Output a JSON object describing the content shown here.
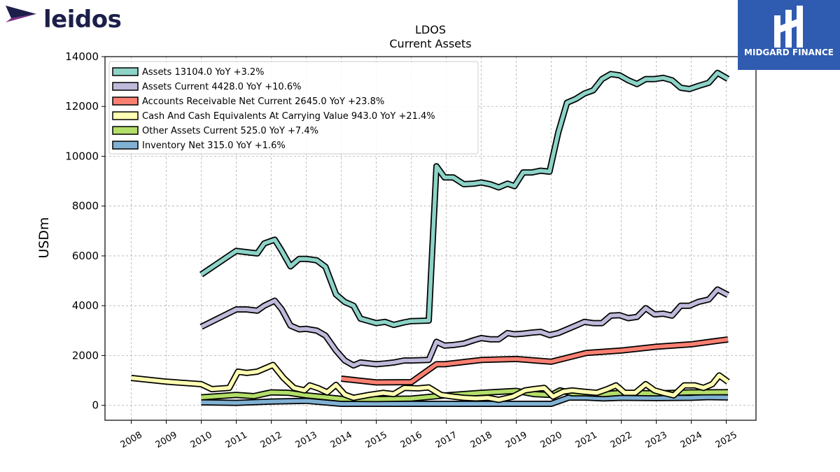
{
  "header": {
    "logo_text": "leidos",
    "badge_text": "MIDGARD FINANCE"
  },
  "colors": {
    "assets": "#8dd3c7",
    "assets_current": "#bebada",
    "accounts_receivable": "#fb8072",
    "cash": "#ffffb3",
    "other_assets": "#b3de69",
    "inventory": "#80b1d3",
    "logo_navy": "#1c1f4a",
    "logo_purple": "#7a2c87",
    "badge_blue": "#2f5bb0"
  },
  "chart_data": {
    "type": "line",
    "title": "LDOS",
    "subtitle": "Current  Assets",
    "xlabel": "",
    "ylabel": "USDm",
    "ylim": [
      -600,
      14000
    ],
    "xlim": [
      2007.25,
      2025.85
    ],
    "yticks": [
      0,
      2000,
      4000,
      6000,
      8000,
      10000,
      12000,
      14000
    ],
    "xticks": [
      "2008",
      "2009",
      "2010",
      "2011",
      "2012",
      "2013",
      "2014",
      "2015",
      "2016",
      "2017",
      "2018",
      "2019",
      "2020",
      "2021",
      "2022",
      "2023",
      "2024",
      "2025"
    ],
    "grid": true,
    "legend_position": "top-left",
    "series": [
      {
        "name": "Assets  13104.0 YoY +3.2%",
        "color_key": "assets",
        "points": [
          [
            2010.0,
            5250
          ],
          [
            2011.0,
            6200
          ],
          [
            2011.3,
            6150
          ],
          [
            2011.6,
            6100
          ],
          [
            2011.8,
            6500
          ],
          [
            2012.1,
            6650
          ],
          [
            2012.3,
            6200
          ],
          [
            2012.55,
            5580
          ],
          [
            2012.8,
            5880
          ],
          [
            2013.0,
            5880
          ],
          [
            2013.3,
            5820
          ],
          [
            2013.55,
            5560
          ],
          [
            2013.85,
            4450
          ],
          [
            2014.1,
            4150
          ],
          [
            2014.35,
            4000
          ],
          [
            2014.55,
            3480
          ],
          [
            2015.0,
            3300
          ],
          [
            2015.25,
            3350
          ],
          [
            2015.5,
            3230
          ],
          [
            2015.8,
            3330
          ],
          [
            2016.0,
            3380
          ],
          [
            2016.5,
            3400
          ],
          [
            2016.72,
            9600
          ],
          [
            2016.95,
            9150
          ],
          [
            2017.2,
            9150
          ],
          [
            2017.5,
            8880
          ],
          [
            2017.8,
            8900
          ],
          [
            2018.0,
            8950
          ],
          [
            2018.25,
            8880
          ],
          [
            2018.5,
            8750
          ],
          [
            2018.75,
            8900
          ],
          [
            2018.95,
            8800
          ],
          [
            2019.2,
            9350
          ],
          [
            2019.45,
            9350
          ],
          [
            2019.7,
            9420
          ],
          [
            2019.95,
            9380
          ],
          [
            2020.2,
            10950
          ],
          [
            2020.45,
            12150
          ],
          [
            2020.7,
            12300
          ],
          [
            2020.95,
            12520
          ],
          [
            2021.2,
            12650
          ],
          [
            2021.45,
            13100
          ],
          [
            2021.7,
            13300
          ],
          [
            2021.95,
            13250
          ],
          [
            2022.2,
            13050
          ],
          [
            2022.45,
            12900
          ],
          [
            2022.7,
            13100
          ],
          [
            2022.95,
            13100
          ],
          [
            2023.2,
            13150
          ],
          [
            2023.45,
            13050
          ],
          [
            2023.7,
            12750
          ],
          [
            2023.95,
            12700
          ],
          [
            2024.2,
            12820
          ],
          [
            2024.5,
            12950
          ],
          [
            2024.75,
            13350
          ],
          [
            2025.05,
            13104
          ]
        ]
      },
      {
        "name": "Assets Current  4428.0 YoY +10.6%",
        "color_key": "assets_current",
        "points": [
          [
            2010.0,
            3150
          ],
          [
            2011.0,
            3850
          ],
          [
            2011.3,
            3850
          ],
          [
            2011.6,
            3800
          ],
          [
            2011.8,
            4000
          ],
          [
            2012.1,
            4200
          ],
          [
            2012.3,
            3850
          ],
          [
            2012.55,
            3200
          ],
          [
            2012.8,
            3050
          ],
          [
            2013.0,
            3070
          ],
          [
            2013.3,
            3000
          ],
          [
            2013.55,
            2800
          ],
          [
            2013.85,
            2200
          ],
          [
            2014.1,
            1800
          ],
          [
            2014.35,
            1600
          ],
          [
            2014.55,
            1720
          ],
          [
            2015.0,
            1650
          ],
          [
            2015.25,
            1680
          ],
          [
            2015.5,
            1720
          ],
          [
            2015.8,
            1800
          ],
          [
            2016.0,
            1800
          ],
          [
            2016.5,
            1820
          ],
          [
            2016.72,
            2550
          ],
          [
            2016.95,
            2400
          ],
          [
            2017.2,
            2420
          ],
          [
            2017.5,
            2480
          ],
          [
            2017.8,
            2620
          ],
          [
            2018.0,
            2700
          ],
          [
            2018.25,
            2650
          ],
          [
            2018.5,
            2650
          ],
          [
            2018.75,
            2900
          ],
          [
            2018.95,
            2850
          ],
          [
            2019.2,
            2880
          ],
          [
            2019.45,
            2920
          ],
          [
            2019.7,
            2950
          ],
          [
            2019.95,
            2820
          ],
          [
            2020.2,
            2900
          ],
          [
            2020.45,
            3050
          ],
          [
            2020.7,
            3200
          ],
          [
            2020.95,
            3350
          ],
          [
            2021.2,
            3300
          ],
          [
            2021.45,
            3300
          ],
          [
            2021.7,
            3600
          ],
          [
            2021.95,
            3620
          ],
          [
            2022.2,
            3500
          ],
          [
            2022.45,
            3550
          ],
          [
            2022.7,
            3900
          ],
          [
            2022.95,
            3650
          ],
          [
            2023.2,
            3680
          ],
          [
            2023.45,
            3600
          ],
          [
            2023.7,
            4000
          ],
          [
            2023.95,
            4000
          ],
          [
            2024.2,
            4150
          ],
          [
            2024.5,
            4250
          ],
          [
            2024.75,
            4650
          ],
          [
            2025.05,
            4428
          ]
        ]
      },
      {
        "name": "Accounts Receivable Net Current  2645.0 YoY +23.8%",
        "color_key": "accounts_receivable",
        "points": [
          [
            2014.0,
            1070
          ],
          [
            2015.0,
            920
          ],
          [
            2016.0,
            930
          ],
          [
            2016.72,
            1650
          ],
          [
            2016.95,
            1650
          ],
          [
            2018.0,
            1820
          ],
          [
            2019.0,
            1860
          ],
          [
            2020.0,
            1750
          ],
          [
            2021.0,
            2100
          ],
          [
            2022.0,
            2200
          ],
          [
            2023.0,
            2350
          ],
          [
            2024.0,
            2450
          ],
          [
            2025.05,
            2645
          ]
        ]
      },
      {
        "name": "Cash And Cash Equivalents At Carrying Value  943.0 YoY +21.4%",
        "color_key": "cash",
        "points": [
          [
            2008.0,
            1100
          ],
          [
            2009.0,
            950
          ],
          [
            2010.0,
            850
          ],
          [
            2010.3,
            650
          ],
          [
            2010.8,
            700
          ],
          [
            2011.05,
            1350
          ],
          [
            2011.3,
            1300
          ],
          [
            2011.6,
            1350
          ],
          [
            2012.05,
            1620
          ],
          [
            2012.35,
            1100
          ],
          [
            2012.65,
            700
          ],
          [
            2012.95,
            600
          ],
          [
            2013.1,
            800
          ],
          [
            2013.35,
            680
          ],
          [
            2013.6,
            520
          ],
          [
            2013.85,
            820
          ],
          [
            2014.1,
            430
          ],
          [
            2014.35,
            300
          ],
          [
            2014.8,
            420
          ],
          [
            2015.2,
            500
          ],
          [
            2015.5,
            450
          ],
          [
            2015.8,
            700
          ],
          [
            2016.2,
            680
          ],
          [
            2016.5,
            720
          ],
          [
            2016.85,
            420
          ],
          [
            2017.2,
            350
          ],
          [
            2017.5,
            300
          ],
          [
            2017.85,
            280
          ],
          [
            2018.2,
            300
          ],
          [
            2018.5,
            220
          ],
          [
            2018.9,
            350
          ],
          [
            2019.25,
            600
          ],
          [
            2019.5,
            650
          ],
          [
            2019.8,
            700
          ],
          [
            2020.05,
            350
          ],
          [
            2020.35,
            550
          ],
          [
            2020.6,
            600
          ],
          [
            2020.9,
            550
          ],
          [
            2021.3,
            500
          ],
          [
            2021.6,
            650
          ],
          [
            2021.85,
            800
          ],
          [
            2022.1,
            500
          ],
          [
            2022.4,
            500
          ],
          [
            2022.7,
            850
          ],
          [
            2022.95,
            600
          ],
          [
            2023.2,
            500
          ],
          [
            2023.5,
            400
          ],
          [
            2023.8,
            800
          ],
          [
            2024.1,
            800
          ],
          [
            2024.35,
            700
          ],
          [
            2024.6,
            850
          ],
          [
            2024.8,
            1200
          ],
          [
            2025.05,
            943
          ]
        ]
      },
      {
        "name": "Other Assets Current  525.0 YoY +7.4%",
        "color_key": "other_assets",
        "points": [
          [
            2010.0,
            320
          ],
          [
            2011.0,
            420
          ],
          [
            2011.5,
            370
          ],
          [
            2012.0,
            520
          ],
          [
            2012.5,
            500
          ],
          [
            2013.0,
            400
          ],
          [
            2014.0,
            260
          ],
          [
            2015.0,
            250
          ],
          [
            2016.0,
            270
          ],
          [
            2017.0,
            400
          ],
          [
            2018.0,
            500
          ],
          [
            2019.0,
            580
          ],
          [
            2019.5,
            450
          ],
          [
            2020.0,
            420
          ],
          [
            2020.25,
            600
          ],
          [
            2020.6,
            480
          ],
          [
            2021.0,
            480
          ],
          [
            2021.5,
            450
          ],
          [
            2022.0,
            500
          ],
          [
            2023.0,
            480
          ],
          [
            2024.0,
            520
          ],
          [
            2025.05,
            525
          ]
        ]
      },
      {
        "name": "Inventory Net  315.0 YoY +1.6%",
        "color_key": "inventory",
        "points": [
          [
            2010.0,
            120
          ],
          [
            2011.0,
            100
          ],
          [
            2012.0,
            150
          ],
          [
            2013.0,
            180
          ],
          [
            2014.0,
            60
          ],
          [
            2015.0,
            60
          ],
          [
            2016.0,
            60
          ],
          [
            2017.0,
            60
          ],
          [
            2018.0,
            60
          ],
          [
            2019.0,
            60
          ],
          [
            2020.0,
            60
          ],
          [
            2020.5,
            310
          ],
          [
            2021.0,
            310
          ],
          [
            2021.5,
            280
          ],
          [
            2022.0,
            300
          ],
          [
            2023.0,
            290
          ],
          [
            2024.0,
            300
          ],
          [
            2024.5,
            330
          ],
          [
            2025.05,
            315
          ]
        ]
      }
    ]
  }
}
